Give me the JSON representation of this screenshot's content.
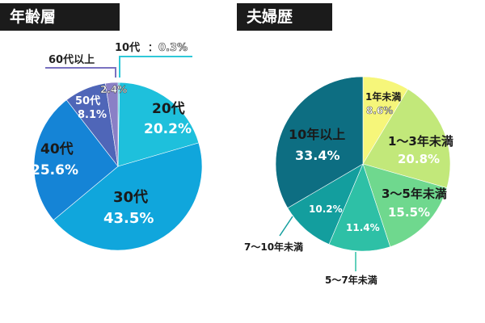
{
  "chart_data": [
    {
      "type": "pie",
      "title": "年齢層",
      "slices": [
        {
          "name": "10代",
          "value": 0.3,
          "label": "0.3%",
          "color": "#30c8d8"
        },
        {
          "name": "20代",
          "value": 20.2,
          "label": "20.2%",
          "color": "#1ec0dc"
        },
        {
          "name": "30代",
          "value": 43.5,
          "label": "43.5%",
          "color": "#10a6dc"
        },
        {
          "name": "40代",
          "value": 25.6,
          "label": "25.6%",
          "color": "#1584d6"
        },
        {
          "name": "50代",
          "value": 8.1,
          "label": "8.1%",
          "color": "#4f66b8"
        },
        {
          "name": "60代以上",
          "value": 2.4,
          "label": "2.4%",
          "color": "#8a80c6"
        }
      ]
    },
    {
      "type": "pie",
      "title": "夫婦歴",
      "slices": [
        {
          "name": "1年未満",
          "value": 8.6,
          "label": "8.6%",
          "color": "#f6f67a"
        },
        {
          "name": "1～3年未満",
          "value": 20.8,
          "label": "20.8%",
          "color": "#c2e87a"
        },
        {
          "name": "3～5年未満",
          "value": 15.5,
          "label": "15.5%",
          "color": "#6fd88e"
        },
        {
          "name": "5～7年未満",
          "value": 11.4,
          "label": "11.4%",
          "color": "#2ec0a6"
        },
        {
          "name": "7～10年未満",
          "value": 10.2,
          "label": "10.2%",
          "color": "#139e9e"
        },
        {
          "name": "10年以上",
          "value": 33.4,
          "label": "33.4%",
          "color": "#0d6e82"
        }
      ]
    }
  ]
}
